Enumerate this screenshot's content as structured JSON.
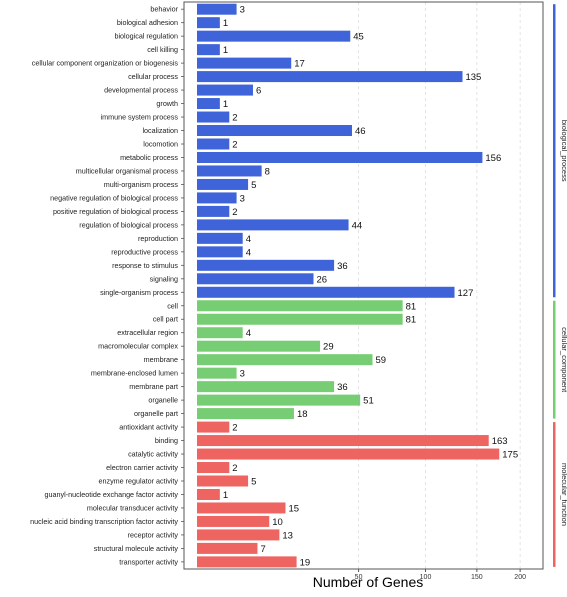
{
  "chart_data": {
    "type": "bar",
    "orientation": "horizontal",
    "xlabel": "Number of Genes",
    "ylabel": "",
    "title": "",
    "xlim": [
      0,
      220
    ],
    "x_scale": "sqrt",
    "x_ticks": [
      50,
      100,
      150,
      200
    ],
    "grid": "vertical dashed",
    "legend_placement": "right side strips",
    "groups": [
      {
        "name": "biological_process",
        "color": "#3f63d9"
      },
      {
        "name": "cellular_component",
        "color": "#77cd73"
      },
      {
        "name": "molecular_function",
        "color": "#ee6461"
      }
    ],
    "categories": [
      {
        "label": "behavior",
        "value": 3,
        "group": 0
      },
      {
        "label": "biological adhesion",
        "value": 1,
        "group": 0
      },
      {
        "label": "biological regulation",
        "value": 45,
        "group": 0
      },
      {
        "label": "cell killing",
        "value": 1,
        "group": 0
      },
      {
        "label": "cellular component organization or biogenesis",
        "value": 17,
        "group": 0
      },
      {
        "label": "cellular process",
        "value": 135,
        "group": 0
      },
      {
        "label": "developmental process",
        "value": 6,
        "group": 0
      },
      {
        "label": "growth",
        "value": 1,
        "group": 0
      },
      {
        "label": "immune system process",
        "value": 2,
        "group": 0
      },
      {
        "label": "localization",
        "value": 46,
        "group": 0
      },
      {
        "label": "locomotion",
        "value": 2,
        "group": 0
      },
      {
        "label": "metabolic process",
        "value": 156,
        "group": 0
      },
      {
        "label": "multicellular organismal process",
        "value": 8,
        "group": 0
      },
      {
        "label": "multi-organism process",
        "value": 5,
        "group": 0
      },
      {
        "label": "negative regulation of biological process",
        "value": 3,
        "group": 0
      },
      {
        "label": "positive regulation of biological process",
        "value": 2,
        "group": 0
      },
      {
        "label": "regulation of biological process",
        "value": 44,
        "group": 0
      },
      {
        "label": "reproduction",
        "value": 4,
        "group": 0
      },
      {
        "label": "reproductive process",
        "value": 4,
        "group": 0
      },
      {
        "label": "response to stimulus",
        "value": 36,
        "group": 0
      },
      {
        "label": "signaling",
        "value": 26,
        "group": 0
      },
      {
        "label": "single-organism process",
        "value": 127,
        "group": 0
      },
      {
        "label": "cell",
        "value": 81,
        "group": 1
      },
      {
        "label": "cell part",
        "value": 81,
        "group": 1
      },
      {
        "label": "extracellular region",
        "value": 4,
        "group": 1
      },
      {
        "label": "macromolecular complex",
        "value": 29,
        "group": 1
      },
      {
        "label": "membrane",
        "value": 59,
        "group": 1
      },
      {
        "label": "membrane-enclosed lumen",
        "value": 3,
        "group": 1
      },
      {
        "label": "membrane part",
        "value": 36,
        "group": 1
      },
      {
        "label": "organelle",
        "value": 51,
        "group": 1
      },
      {
        "label": "organelle part",
        "value": 18,
        "group": 1
      },
      {
        "label": "antioxidant activity",
        "value": 2,
        "group": 2
      },
      {
        "label": "binding",
        "value": 163,
        "group": 2
      },
      {
        "label": "catalytic activity",
        "value": 175,
        "group": 2
      },
      {
        "label": "electron carrier activity",
        "value": 2,
        "group": 2
      },
      {
        "label": "enzyme regulator activity",
        "value": 5,
        "group": 2
      },
      {
        "label": "guanyl-nucleotide exchange factor activity",
        "value": 1,
        "group": 2
      },
      {
        "label": "molecular transducer activity",
        "value": 15,
        "group": 2
      },
      {
        "label": "nucleic acid binding transcription factor activity",
        "value": 10,
        "group": 2
      },
      {
        "label": "receptor activity",
        "value": 13,
        "group": 2
      },
      {
        "label": "structural molecule activity",
        "value": 7,
        "group": 2
      },
      {
        "label": "transporter activity",
        "value": 19,
        "group": 2
      }
    ]
  }
}
